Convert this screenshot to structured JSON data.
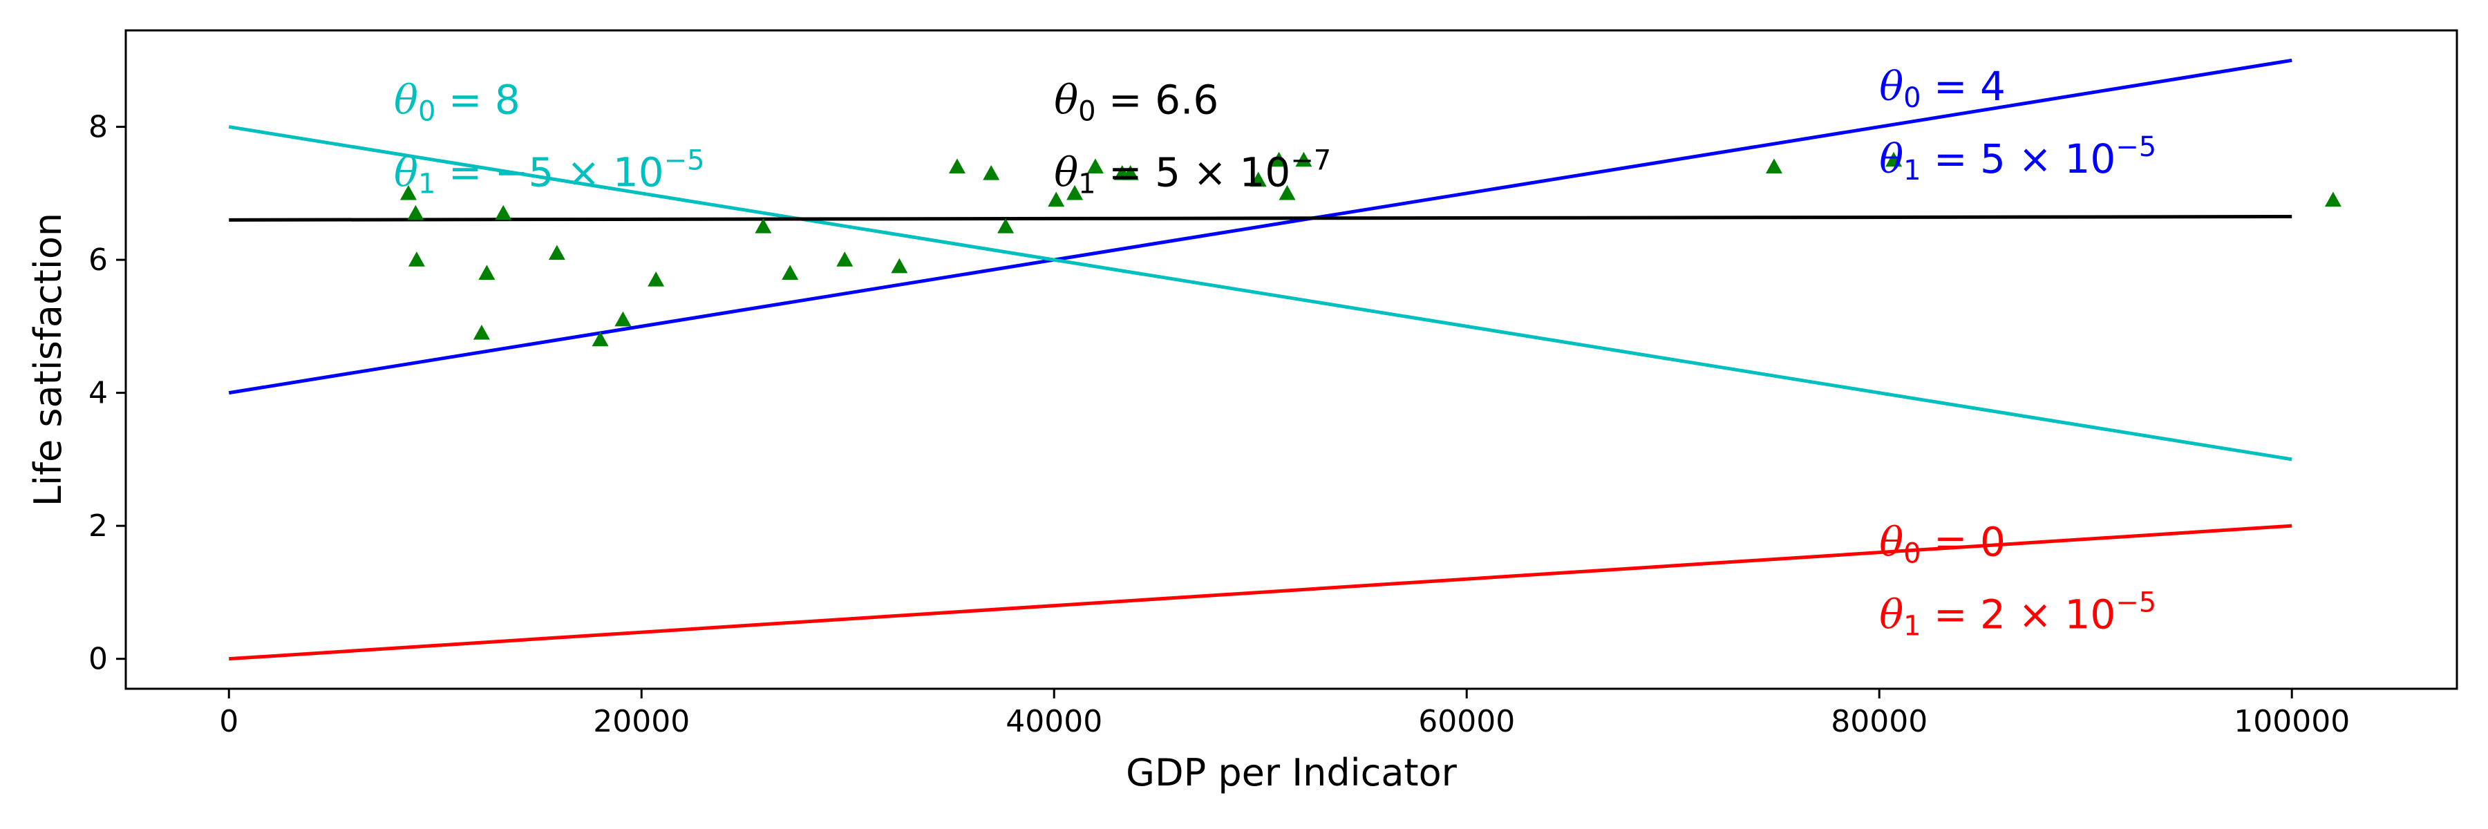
{
  "chart_data": {
    "type": "line",
    "title": "",
    "xlabel": "GDP per Indicator",
    "ylabel": "Life satisfaction",
    "xlim": [
      -5000,
      108000
    ],
    "ylim": [
      -0.45,
      9.45
    ],
    "xticks": [
      0,
      20000,
      40000,
      60000,
      80000,
      100000
    ],
    "xtick_labels": [
      "0",
      "20000",
      "40000",
      "60000",
      "80000",
      "100000"
    ],
    "yticks": [
      0,
      2,
      4,
      6,
      8
    ],
    "ytick_labels": [
      "0",
      "2",
      "4",
      "6",
      "8"
    ],
    "grid": false,
    "legend": "none",
    "lines": [
      {
        "color": "#ff0000",
        "x": [
          0,
          100000
        ],
        "y": [
          0,
          2.0
        ],
        "label_line1": "θ0 = 0",
        "label_line2": "θ1 = 2 × 10−5",
        "theta0": "0",
        "theta1": "2 × 10",
        "theta1_exp": "−5",
        "label_pos": [
          80000,
          1.55
        ]
      },
      {
        "color": "#0000ff",
        "x": [
          0,
          100000
        ],
        "y": [
          4,
          9.0
        ],
        "label_line1": "θ0 = 4",
        "label_line2": "θ1 = 5 × 10−5",
        "theta0": "4",
        "theta1": "5 × 10",
        "theta1_exp": "−5",
        "label_pos": [
          80000,
          8.4
        ]
      },
      {
        "color": "#00bfbf",
        "x": [
          0,
          100000
        ],
        "y": [
          8,
          3.0
        ],
        "label_line1": "θ0 = 8",
        "label_line2": "θ1 = −5 × 10−5",
        "theta0": "8",
        "theta1": "−5 × 10",
        "theta1_exp": "−5",
        "label_pos": [
          8000,
          8.2
        ]
      },
      {
        "color": "#000000",
        "x": [
          0,
          100000
        ],
        "y": [
          6.6,
          6.65
        ],
        "label_line1": "θ0 = 6.6",
        "label_line2": "θ1 = 5 × 10−7",
        "theta0": "6.6",
        "theta1": "5 × 10",
        "theta1_exp": "−7",
        "label_pos": [
          40000,
          8.2
        ]
      }
    ],
    "scatter": {
      "color": "#008000",
      "marker": "triangle",
      "points": [
        [
          8700,
          7.0
        ],
        [
          9050,
          6.7
        ],
        [
          9100,
          6.0
        ],
        [
          12250,
          4.9
        ],
        [
          12500,
          5.8
        ],
        [
          13300,
          6.7
        ],
        [
          15900,
          6.1
        ],
        [
          18000,
          4.8
        ],
        [
          19100,
          5.1
        ],
        [
          20700,
          5.7
        ],
        [
          25900,
          6.5
        ],
        [
          27200,
          5.8
        ],
        [
          29850,
          6.0
        ],
        [
          32500,
          5.9
        ],
        [
          35300,
          7.4
        ],
        [
          36950,
          7.3
        ],
        [
          37650,
          6.5
        ],
        [
          40100,
          6.9
        ],
        [
          41000,
          7.0
        ],
        [
          42000,
          7.4
        ],
        [
          43300,
          7.3
        ],
        [
          43700,
          7.3
        ],
        [
          49900,
          7.2
        ],
        [
          50900,
          7.5
        ],
        [
          51300,
          7.0
        ],
        [
          52100,
          7.5
        ],
        [
          74900,
          7.4
        ],
        [
          80700,
          7.5
        ],
        [
          102000,
          6.9
        ]
      ]
    }
  }
}
